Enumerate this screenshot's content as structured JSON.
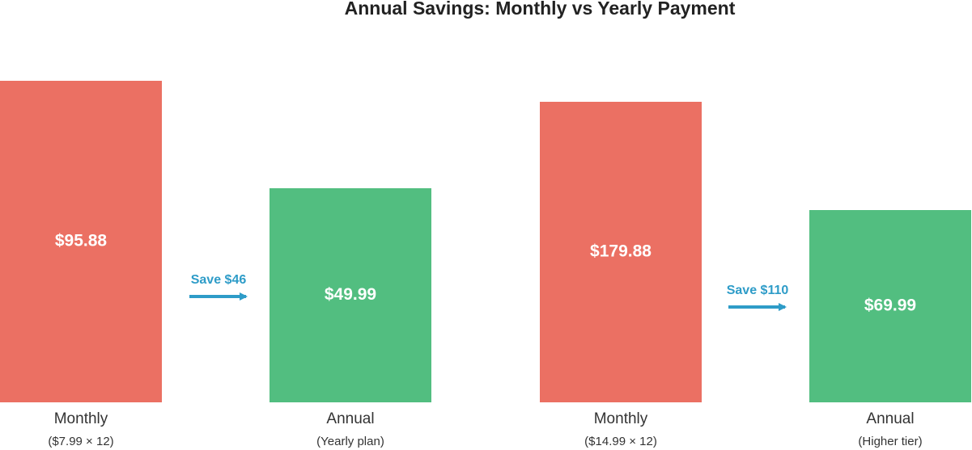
{
  "title": "Annual Savings: Monthly vs Yearly Payment",
  "bars": [
    {
      "value_label": "$95.88",
      "label": "Monthly",
      "sublabel": "($7.99 × 12)"
    },
    {
      "value_label": "$49.99",
      "label": "Annual",
      "sublabel": "(Yearly plan)"
    },
    {
      "value_label": "$179.88",
      "label": "Monthly",
      "sublabel": "($14.99 × 12)"
    },
    {
      "value_label": "$69.99",
      "label": "Annual",
      "sublabel": "(Higher tier)"
    }
  ],
  "arrows": [
    {
      "label": "Save $46"
    },
    {
      "label": "Save $110"
    }
  ]
}
